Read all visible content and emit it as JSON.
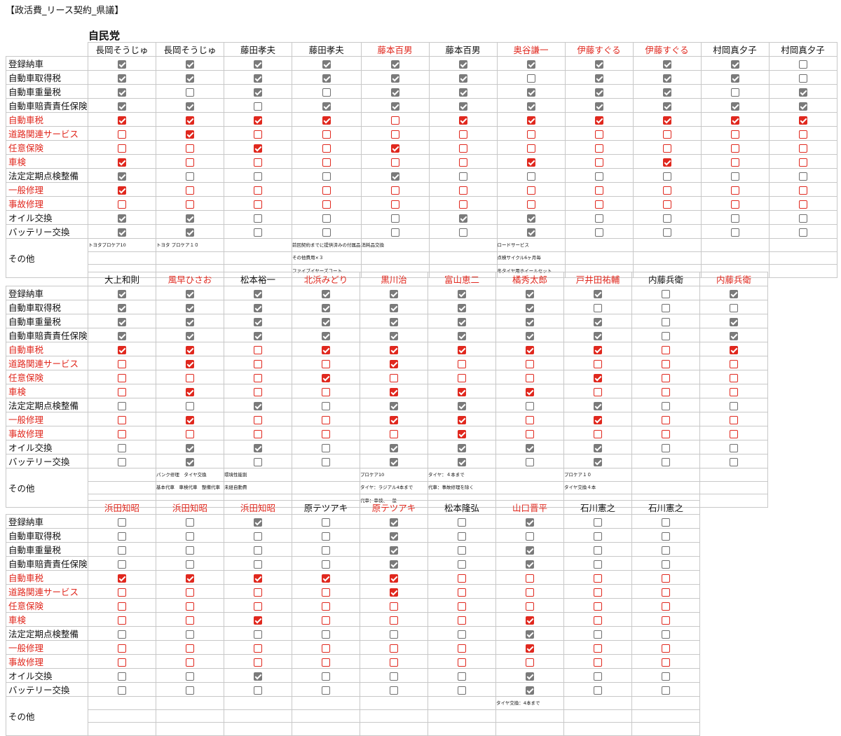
{
  "title": "【政活費_リース契約_県議】",
  "party": "自民党",
  "colors": {
    "red": "#e0281e",
    "gray": "#7a7a7a"
  },
  "row_labels": [
    {
      "label": "登録納車",
      "red": false
    },
    {
      "label": "自動車取得税",
      "red": false
    },
    {
      "label": "自動車重量税",
      "red": false
    },
    {
      "label": "自動車賠責責任保険",
      "red": false
    },
    {
      "label": "自動車税",
      "red": true
    },
    {
      "label": "道路関連サービス",
      "red": true
    },
    {
      "label": "任意保険",
      "red": true
    },
    {
      "label": "車検",
      "red": true
    },
    {
      "label": "法定定期点検整備",
      "red": false
    },
    {
      "label": "一般修理",
      "red": true
    },
    {
      "label": "事故修理",
      "red": true
    },
    {
      "label": "オイル交換",
      "red": false
    },
    {
      "label": "バッテリー交換",
      "red": false
    }
  ],
  "other_label": "その他",
  "tables": [
    {
      "members": [
        {
          "name": "長岡そうじゅ",
          "red": false,
          "checks": [
            1,
            1,
            1,
            1,
            1,
            0,
            0,
            1,
            1,
            1,
            0,
            1,
            1
          ],
          "notes": [
            "トヨタプロケア10",
            "",
            ""
          ]
        },
        {
          "name": "長岡そうじゅ",
          "red": false,
          "checks": [
            1,
            1,
            0,
            1,
            1,
            1,
            0,
            0,
            0,
            0,
            0,
            1,
            1
          ],
          "notes": [
            "トヨタ プロケア１０",
            "",
            ""
          ]
        },
        {
          "name": "藤田孝夫",
          "red": false,
          "checks": [
            1,
            1,
            1,
            0,
            1,
            0,
            1,
            0,
            0,
            0,
            0,
            0,
            0
          ],
          "notes": [
            "",
            "",
            ""
          ]
        },
        {
          "name": "藤田孝夫",
          "red": false,
          "checks": [
            1,
            1,
            0,
            1,
            1,
            0,
            0,
            0,
            0,
            0,
            0,
            0,
            0
          ],
          "notes": [
            "前回契約までに提供済みの付属品",
            "その他費用×３",
            "ファイブイヤーズコート"
          ]
        },
        {
          "name": "藤本百男",
          "red": true,
          "checks": [
            1,
            1,
            1,
            1,
            0,
            0,
            1,
            0,
            1,
            0,
            0,
            0,
            0
          ],
          "notes": [
            "消耗品交換",
            "",
            ""
          ]
        },
        {
          "name": "藤本百男",
          "red": false,
          "checks": [
            1,
            1,
            1,
            1,
            1,
            0,
            0,
            0,
            0,
            0,
            0,
            1,
            0
          ],
          "notes": [
            "",
            "",
            ""
          ]
        },
        {
          "name": "奥谷謙一",
          "red": true,
          "checks": [
            1,
            0,
            1,
            1,
            1,
            0,
            0,
            1,
            0,
            0,
            0,
            1,
            1
          ],
          "notes": [
            "ロードサービス",
            "点検サイクル6ヶ月毎",
            "冬タイヤ用ホイールセット"
          ]
        },
        {
          "name": "伊藤すぐる",
          "red": true,
          "checks": [
            1,
            1,
            1,
            1,
            1,
            0,
            0,
            0,
            0,
            0,
            0,
            0,
            0
          ],
          "notes": [
            "",
            "",
            ""
          ]
        },
        {
          "name": "伊藤すぐる",
          "red": true,
          "checks": [
            1,
            1,
            1,
            1,
            1,
            0,
            0,
            1,
            0,
            0,
            0,
            0,
            0
          ],
          "notes": [
            "",
            "",
            ""
          ]
        },
        {
          "name": "村岡真夕子",
          "red": false,
          "checks": [
            1,
            1,
            0,
            1,
            1,
            0,
            0,
            0,
            0,
            0,
            0,
            0,
            0
          ],
          "notes": [
            "",
            "",
            ""
          ]
        },
        {
          "name": "村岡真夕子",
          "red": false,
          "checks": [
            0,
            0,
            1,
            1,
            1,
            0,
            0,
            0,
            0,
            0,
            0,
            0,
            0
          ],
          "notes": [
            "",
            "",
            ""
          ]
        }
      ]
    },
    {
      "members": [
        {
          "name": "大上和則",
          "red": false,
          "checks": [
            1,
            1,
            1,
            1,
            1,
            0,
            0,
            0,
            0,
            0,
            0,
            0,
            0
          ],
          "notes": [
            "",
            "",
            ""
          ]
        },
        {
          "name": "風早ひさお",
          "red": true,
          "checks": [
            1,
            1,
            1,
            1,
            1,
            1,
            0,
            1,
            0,
            1,
            0,
            1,
            1
          ],
          "notes": [
            "パンク修理　タイヤ交換",
            "基本代車　車検代車　整備代車",
            ""
          ]
        },
        {
          "name": "松本裕一",
          "red": false,
          "checks": [
            1,
            1,
            1,
            1,
            0,
            0,
            0,
            0,
            1,
            0,
            0,
            1,
            0
          ],
          "notes": [
            "環境性能割",
            "未経自動費",
            ""
          ]
        },
        {
          "name": "北浜みどり",
          "red": true,
          "checks": [
            1,
            1,
            1,
            1,
            1,
            0,
            1,
            0,
            0,
            0,
            0,
            0,
            0
          ],
          "notes": [
            "",
            "",
            ""
          ]
        },
        {
          "name": "黒川治",
          "red": true,
          "checks": [
            1,
            1,
            1,
            1,
            1,
            1,
            0,
            1,
            1,
            1,
            0,
            1,
            1
          ],
          "notes": [
            "プロケア10",
            "タイヤ：ラジアル4本まで",
            "代車：車検、一般"
          ]
        },
        {
          "name": "富山恵二",
          "red": true,
          "checks": [
            1,
            1,
            1,
            1,
            1,
            0,
            0,
            1,
            1,
            1,
            1,
            1,
            1
          ],
          "notes": [
            "タイヤ：４本まで",
            "代車：事故修理を除く",
            ""
          ]
        },
        {
          "name": "橘秀太郎",
          "red": true,
          "checks": [
            1,
            1,
            1,
            1,
            1,
            0,
            0,
            1,
            0,
            0,
            0,
            1,
            0
          ],
          "notes": [
            "",
            "",
            ""
          ]
        },
        {
          "name": "戸井田祐輔",
          "red": true,
          "checks": [
            1,
            0,
            1,
            1,
            1,
            0,
            1,
            0,
            1,
            1,
            0,
            1,
            1
          ],
          "notes": [
            "プロケア１０",
            "タイヤ交換４本",
            ""
          ]
        },
        {
          "name": "内藤兵衛",
          "red": false,
          "checks": [
            0,
            0,
            0,
            0,
            0,
            0,
            0,
            0,
            0,
            0,
            0,
            0,
            0
          ],
          "notes": [
            "",
            "",
            ""
          ]
        },
        {
          "name": "内藤兵衛",
          "red": true,
          "checks": [
            1,
            0,
            1,
            1,
            1,
            0,
            0,
            0,
            0,
            0,
            0,
            0,
            0
          ],
          "notes": [
            "",
            "",
            ""
          ]
        }
      ]
    },
    {
      "members": [
        {
          "name": "浜田知昭",
          "red": true,
          "checks": [
            0,
            0,
            0,
            0,
            1,
            0,
            0,
            0,
            0,
            0,
            0,
            0,
            0
          ],
          "notes": [
            "",
            "",
            ""
          ]
        },
        {
          "name": "浜田知昭",
          "red": true,
          "checks": [
            0,
            0,
            0,
            0,
            1,
            0,
            0,
            0,
            0,
            0,
            0,
            0,
            0
          ],
          "notes": [
            "",
            "",
            ""
          ]
        },
        {
          "name": "浜田知昭",
          "red": true,
          "checks": [
            1,
            0,
            0,
            0,
            1,
            0,
            0,
            1,
            0,
            0,
            0,
            1,
            0
          ],
          "notes": [
            "",
            "",
            ""
          ]
        },
        {
          "name": "原テツアキ",
          "red": false,
          "checks": [
            0,
            0,
            0,
            0,
            1,
            0,
            0,
            0,
            0,
            0,
            0,
            0,
            0
          ],
          "notes": [
            "",
            "",
            ""
          ]
        },
        {
          "name": "原テツアキ",
          "red": true,
          "checks": [
            1,
            1,
            1,
            1,
            1,
            1,
            0,
            0,
            0,
            0,
            0,
            0,
            0
          ],
          "notes": [
            "",
            "",
            ""
          ]
        },
        {
          "name": "松本隆弘",
          "red": false,
          "checks": [
            0,
            0,
            0,
            0,
            0,
            0,
            0,
            0,
            0,
            0,
            0,
            0,
            0
          ],
          "notes": [
            "",
            "",
            ""
          ]
        },
        {
          "name": "山口晋平",
          "red": true,
          "checks": [
            1,
            0,
            1,
            1,
            0,
            0,
            0,
            1,
            1,
            1,
            0,
            1,
            1
          ],
          "notes": [
            "タイヤ交換：4本まで",
            "",
            ""
          ]
        },
        {
          "name": "石川憲之",
          "red": false,
          "checks": [
            0,
            0,
            0,
            0,
            0,
            0,
            0,
            0,
            0,
            0,
            0,
            0,
            0
          ],
          "notes": [
            "",
            "",
            ""
          ]
        },
        {
          "name": "石川憲之",
          "red": false,
          "checks": [
            0,
            0,
            0,
            0,
            0,
            0,
            0,
            0,
            0,
            0,
            0,
            0,
            0
          ],
          "notes": [
            "",
            "",
            ""
          ]
        }
      ]
    }
  ]
}
